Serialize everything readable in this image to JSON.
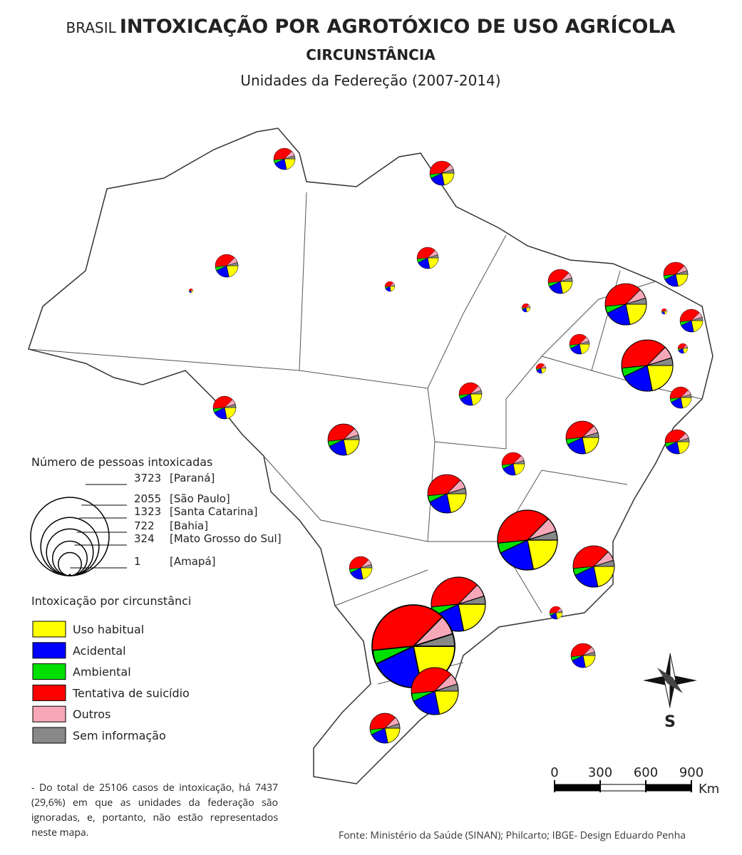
{
  "header": {
    "prefix": "BRASIL",
    "title": "INTOXICAÇÃO POR AGROTÓXICO DE USO AGRÍCOLA",
    "subtitle": "CIRCUNSTÂNCIA",
    "period": "Unidades da Federeção (2007-2014)"
  },
  "size_legend": {
    "title": "Número de pessoas intoxicadas",
    "items": [
      {
        "value": 3723,
        "label": "[Paraná]"
      },
      {
        "value": 2055,
        "label": "[São Paulo]"
      },
      {
        "value": 1323,
        "label": "[Santa Catarina]"
      },
      {
        "value": 722,
        "label": "[Bahia]"
      },
      {
        "value": 324,
        "label": "[Mato Grosso do Sul]"
      },
      {
        "value": 1,
        "label": "[Amapá]"
      }
    ]
  },
  "circumstance_legend": {
    "title": "Intoxicação por circunstânci",
    "items": [
      {
        "label": "Uso habitual",
        "color": "#ffff00"
      },
      {
        "label": "Acidental",
        "color": "#0000ff"
      },
      {
        "label": "Ambiental",
        "color": "#00e000"
      },
      {
        "label": "Tentativa de suicídio",
        "color": "#ff0000"
      },
      {
        "label": "Outros",
        "color": "#f7a8b8"
      },
      {
        "label": "Sem informação",
        "color": "#888888"
      }
    ]
  },
  "scale_bar": {
    "ticks": [
      0,
      300,
      600,
      900
    ],
    "unit": "Km"
  },
  "compass": "S",
  "note": "- Do total de 25106 casos de intoxicação, há 7437 (29,6%) em que as unidades da federação são ignoradas, e, portanto, não estão representados neste mapa.",
  "source": "Fonte: Ministério da Saúde (SINAN); Philcarto; IBGE- Design Eduardo Penha"
}
